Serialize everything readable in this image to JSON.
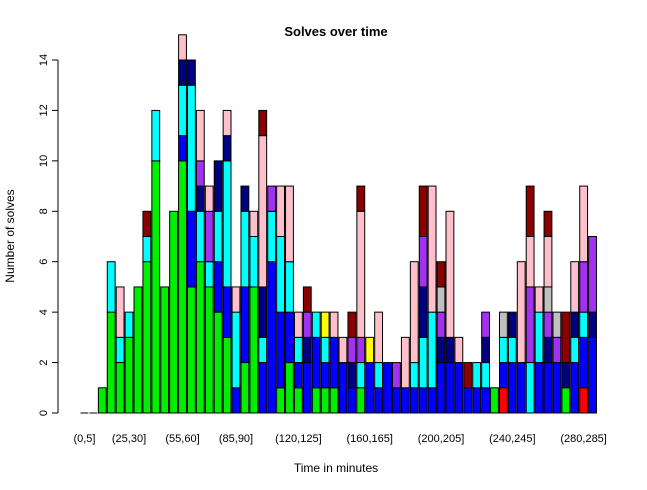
{
  "chart_data": {
    "type": "bar",
    "stacked": true,
    "title": "Solves over time",
    "xlabel": "Time in minutes",
    "ylabel": "Number of solves",
    "ylim": [
      0,
      14
    ],
    "yticks": [
      0,
      2,
      4,
      6,
      8,
      10,
      12,
      14
    ],
    "categories": [
      "(0,5]",
      "(5,10]",
      "(10,15]",
      "(15,20]",
      "(20,25]",
      "(25,30]",
      "(30,35]",
      "(35,40]",
      "(40,45]",
      "(45,50]",
      "(50,55]",
      "(55,60]",
      "(60,65]",
      "(65,70]",
      "(70,75]",
      "(75,80]",
      "(80,85]",
      "(85,90]",
      "(90,95]",
      "(95,100]",
      "(100,105]",
      "(105,110]",
      "(110,115]",
      "(115,120]",
      "(120,125]",
      "(125,130]",
      "(130,135]",
      "(135,140]",
      "(140,145]",
      "(145,150]",
      "(150,155]",
      "(155,160]",
      "(160,165]",
      "(165,170]",
      "(170,175]",
      "(175,180]",
      "(180,185]",
      "(185,190]",
      "(190,195]",
      "(195,200]",
      "(200,205]",
      "(205,210]",
      "(210,215]",
      "(215,220]",
      "(220,225]",
      "(225,230]",
      "(230,235]",
      "(235,240]",
      "(240,245]",
      "(245,250]",
      "(250,255]",
      "(255,260]",
      "(260,265]",
      "(265,270]",
      "(270,275]",
      "(275,280]",
      "(280,285]",
      "(285,290]"
    ],
    "xtick_labels": [
      "(0,5]",
      "(25,30]",
      "(55,60]",
      "(85,90]",
      "(120,125]",
      "(160,165]",
      "(200,205]",
      "(240,245]",
      "(280,285]"
    ],
    "xtick_label_positions": [
      0,
      5,
      11,
      17,
      24,
      32,
      40,
      48,
      56
    ],
    "series": [
      {
        "color": "#ff0000",
        "values": [
          0,
          0,
          0,
          0,
          0,
          0,
          0,
          0,
          0,
          0,
          0,
          0,
          0,
          0,
          0,
          0,
          0,
          0,
          0,
          0,
          0,
          0,
          0,
          0,
          0,
          0,
          0,
          0,
          0,
          0,
          0,
          0,
          0,
          0,
          0,
          0,
          0,
          0,
          0,
          0,
          0,
          0,
          0,
          0,
          0,
          0,
          0,
          1,
          0,
          0,
          0,
          0,
          0,
          0,
          0,
          0,
          1,
          0
        ]
      },
      {
        "color": "#00ee00",
        "values": [
          0,
          0,
          1,
          4,
          2,
          3,
          5,
          6,
          10,
          5,
          8,
          10,
          5,
          6,
          5,
          4,
          3,
          0,
          2,
          5,
          0,
          0,
          1,
          2,
          1,
          0,
          1,
          1,
          1,
          0,
          0,
          1,
          0,
          0,
          0,
          0,
          0,
          0,
          0,
          0,
          0,
          0,
          0,
          0,
          0,
          0,
          1,
          0,
          0,
          0,
          0,
          0,
          0,
          0,
          1,
          0,
          0,
          0
        ]
      },
      {
        "color": "#0000ff",
        "values": [
          0,
          0,
          0,
          0,
          0,
          0,
          0,
          0,
          0,
          0,
          0,
          1,
          3,
          0,
          0,
          2,
          2,
          1,
          3,
          0,
          2,
          6,
          3,
          2,
          1,
          2,
          2,
          1,
          2,
          2,
          1,
          0,
          2,
          1,
          2,
          1,
          1,
          1,
          1,
          1,
          2,
          2,
          2,
          1,
          1,
          1,
          0,
          1,
          2,
          2,
          0,
          2,
          2,
          2,
          0,
          2,
          2,
          3
        ]
      },
      {
        "color": "#00ffff",
        "values": [
          0,
          0,
          0,
          2,
          1,
          1,
          0,
          1,
          2,
          0,
          0,
          2,
          5,
          2,
          1,
          2,
          5,
          3,
          3,
          2,
          1,
          2,
          3,
          2,
          1,
          0,
          1,
          1,
          0,
          0,
          0,
          1,
          0,
          1,
          0,
          0,
          0,
          1,
          2,
          3,
          0,
          0,
          0,
          0,
          1,
          1,
          0,
          1,
          1,
          0,
          2,
          2,
          0,
          0,
          0,
          1,
          1,
          0
        ]
      },
      {
        "color": "#000080",
        "values": [
          0,
          0,
          0,
          0,
          0,
          0,
          0,
          0,
          0,
          0,
          0,
          1,
          1,
          1,
          0,
          2,
          1,
          0,
          1,
          0,
          2,
          0,
          0,
          0,
          0,
          1,
          0,
          0,
          0,
          0,
          1,
          0,
          0,
          0,
          0,
          0,
          0,
          0,
          2,
          0,
          1,
          1,
          0,
          0,
          0,
          1,
          0,
          0,
          1,
          0,
          0,
          0,
          1,
          0,
          1,
          1,
          0,
          1
        ]
      },
      {
        "color": "#a032f0",
        "values": [
          0,
          0,
          0,
          0,
          0,
          0,
          0,
          0,
          0,
          0,
          0,
          0,
          0,
          1,
          2,
          0,
          0,
          0,
          0,
          0,
          0,
          1,
          0,
          0,
          0,
          1,
          0,
          0,
          0,
          0,
          1,
          1,
          0,
          0,
          0,
          1,
          0,
          0,
          2,
          0,
          1,
          0,
          0,
          0,
          0,
          1,
          0,
          0,
          0,
          0,
          3,
          0,
          1,
          1,
          0,
          0,
          2,
          3
        ]
      },
      {
        "color": "#c0c0c0",
        "values": [
          0,
          0,
          0,
          0,
          0,
          0,
          0,
          0,
          0,
          0,
          0,
          0,
          0,
          0,
          0,
          0,
          0,
          0,
          0,
          0,
          0,
          0,
          0,
          0,
          0,
          0,
          0,
          0,
          0,
          0,
          0,
          0,
          0,
          0,
          0,
          0,
          0,
          0,
          0,
          0,
          1,
          0,
          0,
          0,
          0,
          0,
          0,
          1,
          0,
          0,
          0,
          0,
          1,
          1,
          0,
          0,
          0,
          0
        ]
      },
      {
        "color": "#ffff00",
        "values": [
          0,
          0,
          0,
          0,
          0,
          0,
          0,
          0,
          0,
          0,
          0,
          0,
          0,
          0,
          0,
          0,
          0,
          0,
          0,
          0,
          0,
          0,
          0,
          0,
          0,
          0,
          0,
          1,
          0,
          0,
          0,
          0,
          1,
          0,
          0,
          0,
          0,
          0,
          0,
          0,
          0,
          0,
          0,
          0,
          0,
          0,
          0,
          0,
          0,
          0,
          0,
          0,
          0,
          0,
          0,
          0,
          0,
          0
        ]
      },
      {
        "color": "#ffc0cb",
        "values": [
          0,
          0,
          0,
          0,
          2,
          0,
          0,
          0,
          0,
          0,
          0,
          1,
          0,
          2,
          1,
          0,
          1,
          1,
          0,
          1,
          6,
          0,
          2,
          3,
          1,
          0,
          0,
          0,
          1,
          1,
          0,
          5,
          0,
          2,
          0,
          0,
          2,
          4,
          0,
          5,
          0,
          5,
          1,
          0,
          0,
          0,
          0,
          0,
          0,
          4,
          2,
          1,
          2,
          0,
          0,
          2,
          3,
          0
        ]
      },
      {
        "color": "#8b0000",
        "values": [
          0,
          0,
          0,
          0,
          0,
          0,
          0,
          1,
          0,
          0,
          0,
          0,
          0,
          0,
          0,
          0,
          0,
          0,
          0,
          0,
          1,
          0,
          0,
          0,
          0,
          1,
          0,
          0,
          0,
          0,
          1,
          1,
          0,
          0,
          0,
          0,
          0,
          0,
          2,
          0,
          1,
          0,
          0,
          1,
          0,
          0,
          0,
          0,
          0,
          0,
          2,
          0,
          1,
          0,
          2,
          0,
          0,
          0
        ]
      }
    ],
    "legend": "none",
    "grid": false
  }
}
